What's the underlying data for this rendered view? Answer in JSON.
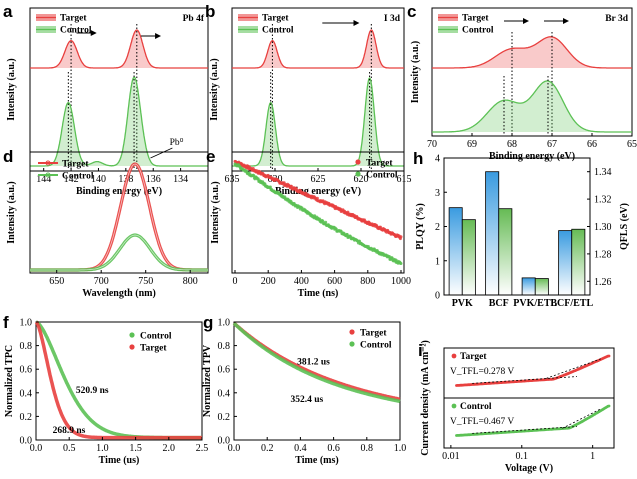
{
  "colors": {
    "target": "#e8403f",
    "control": "#5cc155",
    "plqy": "#3a9be0",
    "qfls": "#66bb55"
  },
  "chart_data": [
    {
      "id": "a",
      "panel_label": "a",
      "type": "line",
      "title": "Pb 4f",
      "xlabel": "Binding energy (eV)",
      "ylabel": "Intensity (a.u.)",
      "xlim": [
        145,
        132
      ],
      "xticks": [
        144,
        142,
        140,
        138,
        136,
        134
      ],
      "series": [
        {
          "name": "Target",
          "peaks": [
            142.0,
            137.2
          ]
        },
        {
          "name": "Control",
          "peaks": [
            142.2,
            137.4
          ]
        }
      ],
      "legend": [
        "Target",
        "Control"
      ],
      "annotation": "Pb⁰"
    },
    {
      "id": "b",
      "panel_label": "b",
      "type": "line",
      "title": "I 3d",
      "xlabel": "Binding energy (eV)",
      "ylabel": "Intensity (a.u.)",
      "xlim": [
        635,
        615
      ],
      "xticks": [
        635,
        630,
        625,
        620,
        615
      ],
      "series": [
        {
          "name": "Target",
          "peaks": [
            630.3,
            618.8
          ]
        },
        {
          "name": "Control",
          "peaks": [
            630.5,
            619.0
          ]
        }
      ],
      "legend": [
        "Target",
        "Control"
      ]
    },
    {
      "id": "c",
      "panel_label": "c",
      "type": "line",
      "title": "Br 3d",
      "xlabel": "Binding energy (eV)",
      "ylabel": "Intensity (a.u.)",
      "xlim": [
        70,
        65
      ],
      "xticks": [
        70,
        69,
        68,
        67,
        66,
        65
      ],
      "series": [
        {
          "name": "Target",
          "peaks": [
            68.0,
            67.0
          ]
        },
        {
          "name": "Control",
          "peaks": [
            68.2,
            67.1
          ]
        }
      ],
      "legend": [
        "Target",
        "Control"
      ]
    },
    {
      "id": "d",
      "panel_label": "d",
      "type": "line",
      "xlabel": "Wavelength (nm)",
      "ylabel": "Intensity (a.u.)",
      "xlim": [
        620,
        820
      ],
      "xticks": [
        650,
        700,
        750,
        800
      ],
      "series": [
        {
          "name": "Target",
          "peak_x": 738,
          "peak_y": 1.0,
          "fwhm": 38
        },
        {
          "name": "Control",
          "peak_x": 738,
          "peak_y": 0.33,
          "fwhm": 40
        }
      ],
      "legend": [
        "Target",
        "Control"
      ]
    },
    {
      "id": "e",
      "panel_label": "e",
      "type": "scatter",
      "xlabel": "Time (ns)",
      "ylabel": "Intensity (a.u.)",
      "xlim": [
        0,
        1000
      ],
      "xticks": [
        0,
        200,
        400,
        600,
        800,
        1000
      ],
      "series": [
        {
          "name": "Target",
          "start": 1.0,
          "end": 0.29
        },
        {
          "name": "Control",
          "start": 0.98,
          "end": 0.05
        }
      ],
      "legend": [
        "Target",
        "Control"
      ]
    },
    {
      "id": "h",
      "panel_label": "h",
      "type": "bar",
      "ylabel": "PLQY (%)",
      "ylabel_right": "QFLS (eV)",
      "categories": [
        "PVK",
        "BCF",
        "PVK/ETL",
        "BCF/ETL"
      ],
      "ylim": [
        0,
        4
      ],
      "yticks": [
        0,
        1,
        2,
        3,
        4
      ],
      "ylim_right": [
        1.25,
        1.35
      ],
      "yticks_right": [
        1.26,
        1.28,
        1.3,
        1.32,
        1.34
      ],
      "series": [
        {
          "name": "PLQY",
          "values": [
            2.55,
            3.6,
            0.5,
            1.88
          ]
        },
        {
          "name": "QFLS",
          "values": [
            1.305,
            1.313,
            1.262,
            1.298
          ]
        }
      ]
    },
    {
      "id": "f",
      "panel_label": "f",
      "type": "line",
      "xlabel": "Time (us)",
      "ylabel": "Normalized TPC",
      "xlim": [
        0,
        2.5
      ],
      "ylim": [
        0,
        1.0
      ],
      "xticks": [
        0.0,
        0.5,
        1.0,
        1.5,
        2.0,
        2.5
      ],
      "yticks": [
        0.0,
        0.2,
        0.4,
        0.6,
        0.8,
        1.0
      ],
      "series": [
        {
          "name": "Control",
          "tau": 0.5209
        },
        {
          "name": "Target",
          "tau": 0.2689
        }
      ],
      "legend": [
        "Control",
        "Target"
      ],
      "annotations": [
        "520.9 ns",
        "268.9 ns"
      ]
    },
    {
      "id": "g",
      "panel_label": "g",
      "type": "line",
      "xlabel": "Time (ms)",
      "ylabel": "Normalized TPV",
      "xlim": [
        0,
        1.0
      ],
      "ylim": [
        0,
        1.0
      ],
      "xticks": [
        0.0,
        0.2,
        0.4,
        0.6,
        0.8,
        1.0
      ],
      "yticks": [
        0.0,
        0.2,
        0.4,
        0.6,
        0.8,
        1.0
      ],
      "series": [
        {
          "name": "Target",
          "tau": 0.3812
        },
        {
          "name": "Control",
          "tau": 0.3524
        }
      ],
      "legend": [
        "Target",
        "Control"
      ],
      "annotations": [
        "381.2 us",
        "352.4 us"
      ]
    },
    {
      "id": "i",
      "panel_label": "i",
      "type": "scatter",
      "xlabel": "Voltage (V)",
      "ylabel": "Current density (mA cm⁻²)",
      "xscale": "log",
      "xticks": [
        0.01,
        0.1,
        1
      ],
      "xtick_labels": [
        "0.01",
        "0.1",
        "1"
      ],
      "series": [
        {
          "name": "Target",
          "vtfl": 0.278
        },
        {
          "name": "Control",
          "vtfl": 0.467
        }
      ],
      "annotations": [
        "V_TFL=0.278 V",
        "V_TFL=0.467 V"
      ],
      "legend": [
        "Target",
        "Control"
      ]
    }
  ]
}
